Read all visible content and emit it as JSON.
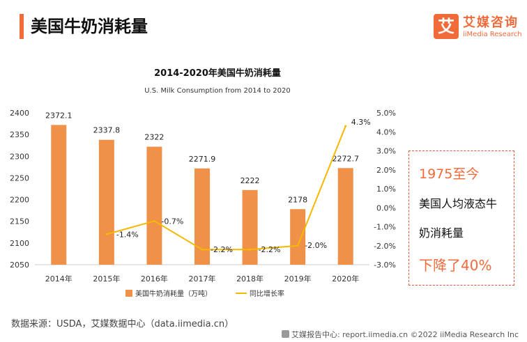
{
  "header": {
    "title": "美国牛奶消耗量",
    "logo_mark": "艾",
    "logo_cn": "艾媒咨询",
    "logo_en": "iiMedia Research"
  },
  "chart_data": {
    "type": "bar",
    "title": "2014-2020年美国牛奶消耗量",
    "subtitle": "U.S. Milk Consumption from 2014 to 2020",
    "categories": [
      "2014年",
      "2015年",
      "2016年",
      "2017年",
      "2018年",
      "2019年",
      "2020年"
    ],
    "series": [
      {
        "name": "美国牛奶消耗量（万吨）",
        "type": "bar",
        "axis": "left",
        "color": "#f0914a",
        "values": [
          2372.1,
          2337.8,
          2322,
          2271.9,
          2222,
          2178,
          2272.7
        ],
        "labels": [
          "2372.1",
          "2337.8",
          "2322",
          "2271.9",
          "2222",
          "2178",
          "2272.7"
        ]
      },
      {
        "name": "同比增长率",
        "type": "line",
        "axis": "right",
        "color": "#f5b800",
        "values": [
          null,
          -1.4,
          -0.7,
          -2.2,
          -2.2,
          -2.0,
          4.3
        ],
        "labels": [
          "",
          "-1.4%",
          "-0.7%",
          "-2.2%",
          "-2.2%",
          "-2.0%",
          "4.3%"
        ]
      }
    ],
    "y_left": {
      "min": 2050,
      "max": 2400,
      "ticks": [
        "2400",
        "2350",
        "2300",
        "2250",
        "2200",
        "2150",
        "2100",
        "2050"
      ]
    },
    "y_right": {
      "min": -3.0,
      "max": 5.0,
      "ticks": [
        "5.0%",
        "4.0%",
        "3.0%",
        "2.0%",
        "1.0%",
        "0.0%",
        "-1.0%",
        "-2.0%",
        "-3.0%"
      ]
    },
    "grid": false,
    "legend_position": "bottom"
  },
  "callout": {
    "line1": "1975至今",
    "line2": "美国人均液态牛",
    "line3": "奶消耗量",
    "line4": "下降了40%"
  },
  "source": "数据来源：USDA，艾媒数据中心（data.iimedia.cn）",
  "footer": "艾媒报告中心: report.iimedia.cn  ©2022  iiMedia Research  Inc"
}
